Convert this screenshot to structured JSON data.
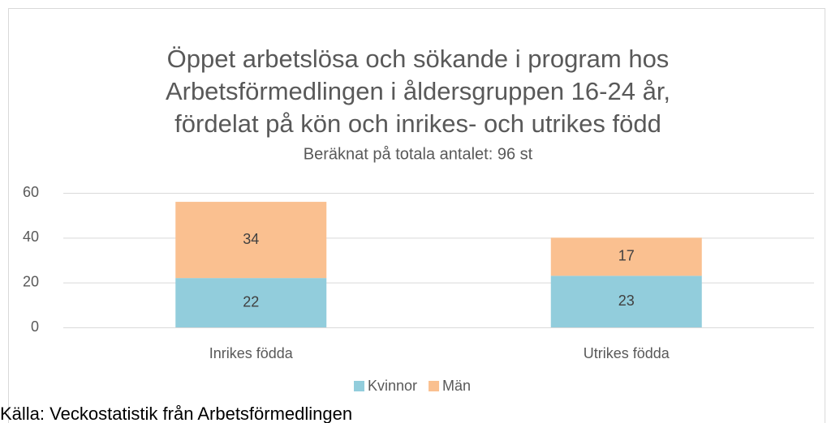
{
  "chart_data": {
    "type": "stacked_bar",
    "title": [
      "Öppet arbetslösa och sökande i program hos",
      "Arbetsförmedlingen i åldersgruppen 16-24 år,",
      "fördelat på kön och inrikes- och utrikes född"
    ],
    "subtitle": "Beräknat på totala antalet: 96 st",
    "categories": [
      "Inrikes födda",
      "Utrikes födda"
    ],
    "series": [
      {
        "name": "Kvinnor",
        "color": "#92cddc",
        "values": [
          22,
          23
        ]
      },
      {
        "name": "Män",
        "color": "#fac090",
        "values": [
          34,
          17
        ]
      }
    ],
    "ylim": [
      0,
      60
    ],
    "yticks": [
      0,
      20,
      40,
      60
    ],
    "grid": true,
    "legend": "bottom",
    "source": "Källa: Veckostatistik från Arbetsförmedlingen"
  }
}
